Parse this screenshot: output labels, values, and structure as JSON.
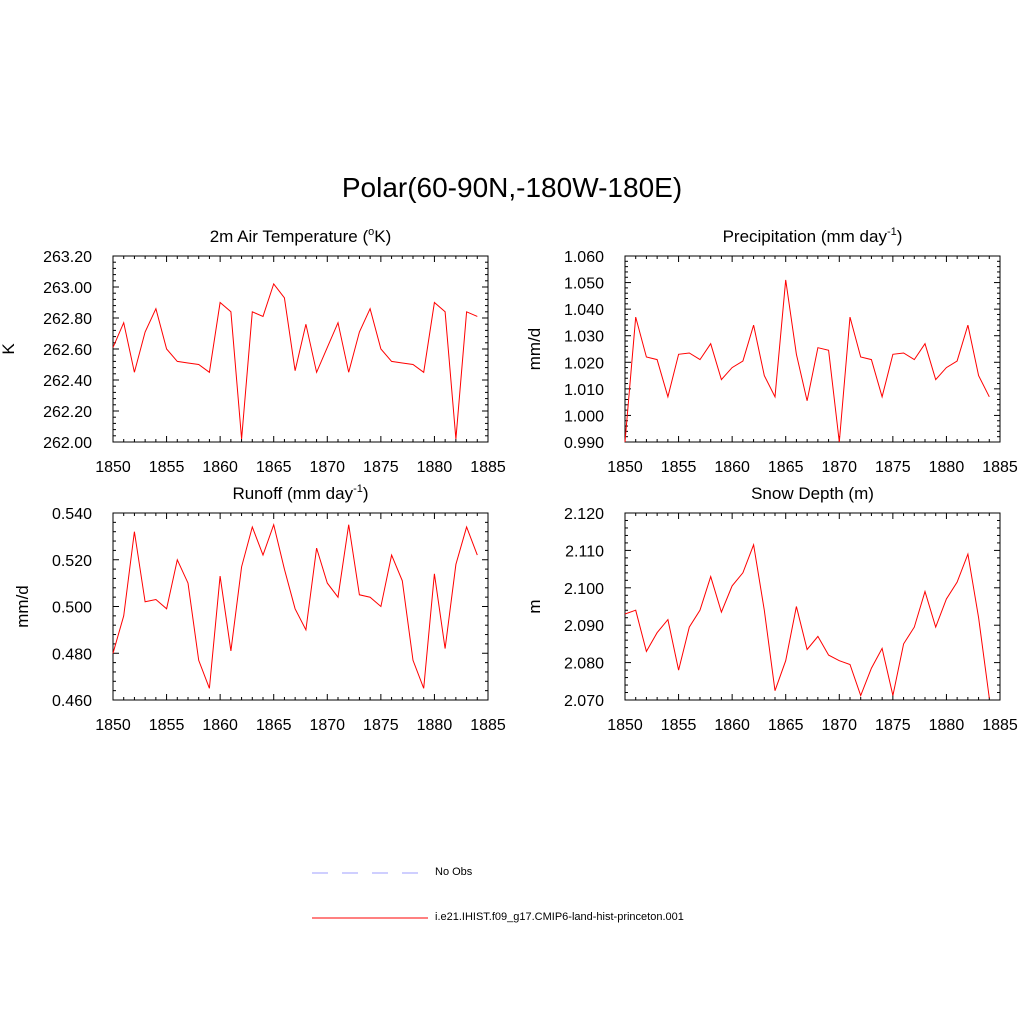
{
  "figure": {
    "title": "Polar(60-90N,-180W-180E)"
  },
  "legend": {
    "entries": [
      {
        "label": "No Obs",
        "color": "#9f9fff",
        "style": "dashed"
      },
      {
        "label": "i.e21.IHIST.f09_g17.CMIP6-land-hist-princeton.001",
        "color": "#ff0000",
        "style": "solid"
      }
    ]
  },
  "chart_data": [
    {
      "type": "line",
      "title": "2m Air Temperature (",
      "title_sup": "o",
      "title_suffix": "K)",
      "ylabel": "K",
      "xlim": [
        1850,
        1885
      ],
      "ylim": [
        262.0,
        263.2
      ],
      "xticks": [
        "1850",
        "1855",
        "1860",
        "1865",
        "1870",
        "1875",
        "1880",
        "1885"
      ],
      "yticks": [
        "262.00",
        "262.20",
        "262.40",
        "262.60",
        "262.80",
        "263.00",
        "263.20"
      ],
      "series": [
        {
          "color": "#ff0000",
          "x": [
            1850,
            1851,
            1852,
            1853,
            1854,
            1855,
            1856,
            1857,
            1858,
            1859,
            1860,
            1861,
            1862,
            1863,
            1864,
            1865,
            1866,
            1867,
            1868,
            1869,
            1870,
            1871,
            1872,
            1873,
            1874,
            1875,
            1876,
            1877,
            1878,
            1879,
            1880,
            1881,
            1882,
            1883,
            1884
          ],
          "y": [
            262.61,
            262.77,
            262.45,
            262.71,
            262.86,
            262.6,
            262.52,
            262.51,
            262.5,
            262.45,
            262.9,
            262.84,
            262.02,
            262.84,
            262.81,
            263.02,
            262.93,
            262.46,
            262.76,
            262.45,
            262.61,
            262.77,
            262.45,
            262.71,
            262.86,
            262.6,
            262.52,
            262.51,
            262.5,
            262.45,
            262.9,
            262.84,
            262.02,
            262.84,
            262.81
          ]
        }
      ]
    },
    {
      "type": "line",
      "title": "Precipitation (mm day",
      "title_sup": "-1",
      "title_suffix": ")",
      "ylabel": "mm/d",
      "xlim": [
        1850,
        1885
      ],
      "ylim": [
        0.99,
        1.06
      ],
      "xticks": [
        "1850",
        "1855",
        "1860",
        "1865",
        "1870",
        "1875",
        "1880",
        "1885"
      ],
      "yticks": [
        "0.990",
        "1.000",
        "1.010",
        "1.020",
        "1.030",
        "1.040",
        "1.050",
        "1.060"
      ],
      "series": [
        {
          "color": "#ff0000",
          "x": [
            1850,
            1851,
            1852,
            1853,
            1854,
            1855,
            1856,
            1857,
            1858,
            1859,
            1860,
            1861,
            1862,
            1863,
            1864,
            1865,
            1866,
            1867,
            1868,
            1869,
            1870,
            1871,
            1872,
            1873,
            1874,
            1875,
            1876,
            1877,
            1878,
            1879,
            1880,
            1881,
            1882,
            1883,
            1884
          ],
          "y": [
            0.99,
            1.037,
            1.022,
            1.021,
            1.007,
            1.023,
            1.0235,
            1.021,
            1.027,
            1.0135,
            1.018,
            1.0205,
            1.034,
            1.015,
            1.007,
            1.051,
            1.023,
            1.0055,
            1.0255,
            1.0245,
            0.99,
            1.037,
            1.022,
            1.021,
            1.007,
            1.023,
            1.0235,
            1.021,
            1.027,
            1.0135,
            1.018,
            1.0205,
            1.034,
            1.015,
            1.007
          ]
        }
      ]
    },
    {
      "type": "line",
      "title": "Runoff (mm day",
      "title_sup": "-1",
      "title_suffix": ")",
      "ylabel": "mm/d",
      "xlim": [
        1850,
        1885
      ],
      "ylim": [
        0.46,
        0.54
      ],
      "xticks": [
        "1850",
        "1855",
        "1860",
        "1865",
        "1870",
        "1875",
        "1880",
        "1885"
      ],
      "yticks": [
        "0.460",
        "0.480",
        "0.500",
        "0.520",
        "0.540"
      ],
      "series": [
        {
          "color": "#ff0000",
          "x": [
            1850,
            1851,
            1852,
            1853,
            1854,
            1855,
            1856,
            1857,
            1858,
            1859,
            1860,
            1861,
            1862,
            1863,
            1864,
            1865,
            1866,
            1867,
            1868,
            1869,
            1870,
            1871,
            1872,
            1873,
            1874,
            1875,
            1876,
            1877,
            1878,
            1879,
            1880,
            1881,
            1882,
            1883,
            1884
          ],
          "y": [
            0.48,
            0.496,
            0.532,
            0.502,
            0.503,
            0.499,
            0.52,
            0.51,
            0.477,
            0.465,
            0.513,
            0.481,
            0.517,
            0.534,
            0.522,
            0.535,
            0.516,
            0.499,
            0.49,
            0.525,
            0.51,
            0.504,
            0.535,
            0.505,
            0.504,
            0.5,
            0.522,
            0.511,
            0.477,
            0.465,
            0.514,
            0.482,
            0.518,
            0.534,
            0.522
          ]
        }
      ]
    },
    {
      "type": "line",
      "title": "Snow Depth (m)",
      "title_sup": "",
      "title_suffix": "",
      "ylabel": "m",
      "xlim": [
        1850,
        1885
      ],
      "ylim": [
        2.07,
        2.12
      ],
      "xticks": [
        "1850",
        "1855",
        "1860",
        "1865",
        "1870",
        "1875",
        "1880",
        "1885"
      ],
      "yticks": [
        "2.070",
        "2.080",
        "2.090",
        "2.100",
        "2.110",
        "2.120"
      ],
      "series": [
        {
          "color": "#ff0000",
          "x": [
            1850,
            1851,
            1852,
            1853,
            1854,
            1855,
            1856,
            1857,
            1858,
            1859,
            1860,
            1861,
            1862,
            1863,
            1864,
            1865,
            1866,
            1867,
            1868,
            1869,
            1870,
            1871,
            1872,
            1873,
            1874,
            1875,
            1876,
            1877,
            1878,
            1879,
            1880,
            1881,
            1882,
            1883,
            1884
          ],
          "y": [
            2.093,
            2.094,
            2.083,
            2.088,
            2.0915,
            2.078,
            2.0895,
            2.094,
            2.103,
            2.0935,
            2.1005,
            2.104,
            2.1115,
            2.094,
            2.0725,
            2.0805,
            2.095,
            2.0835,
            2.087,
            2.082,
            2.0805,
            2.0795,
            2.0712,
            2.0785,
            2.0838,
            2.0712,
            2.085,
            2.0895,
            2.099,
            2.0895,
            2.097,
            2.1015,
            2.109,
            2.092,
            2.0705
          ]
        }
      ]
    }
  ]
}
